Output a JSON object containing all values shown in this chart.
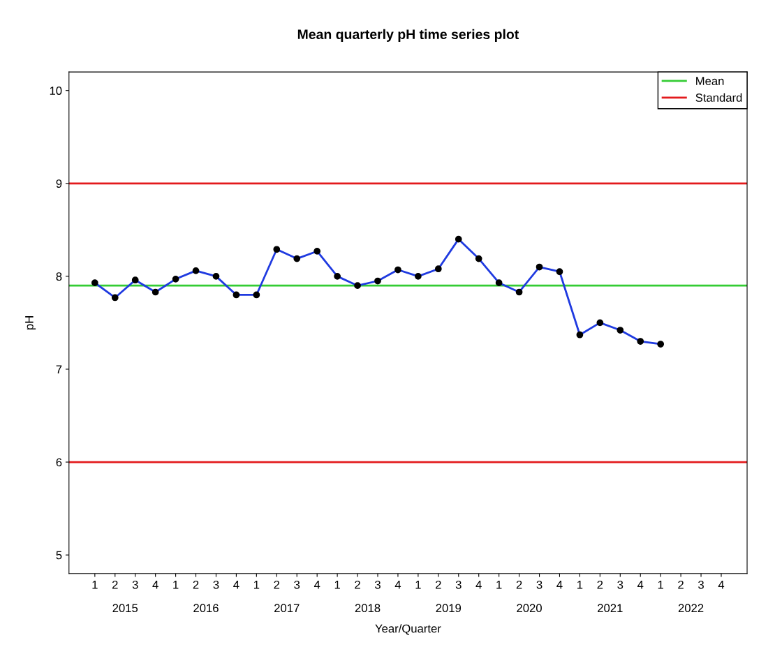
{
  "chart_data": {
    "type": "line",
    "title": "Mean quarterly pH time series plot",
    "xlabel": "Year/Quarter",
    "ylabel": "pH",
    "categories": [
      "1",
      "2",
      "3",
      "4",
      "1",
      "2",
      "3",
      "4",
      "1",
      "2",
      "3",
      "4",
      "1",
      "2",
      "3",
      "4",
      "1",
      "2",
      "3",
      "4",
      "1",
      "2",
      "3",
      "4",
      "1",
      "2",
      "3",
      "4",
      "1",
      "2",
      "3",
      "4"
    ],
    "annotations": [
      "2015",
      "2016",
      "2017",
      "2018",
      "2019",
      "2020",
      "2021",
      "2022"
    ],
    "series": [
      {
        "color": "#1f3ae0",
        "values": [
          7.93,
          7.77,
          7.96,
          7.83,
          7.97,
          8.06,
          8.0,
          7.8,
          7.8,
          8.29,
          8.19,
          8.27,
          8.0,
          7.9,
          7.95,
          8.07,
          8.0,
          8.08,
          8.4,
          8.19,
          7.93,
          7.83,
          8.1,
          8.05,
          7.37,
          7.5,
          7.42,
          7.3,
          7.27,
          null,
          null,
          null
        ]
      }
    ],
    "ylim": [
      4.8,
      10.2
    ],
    "yticks": [
      5,
      6,
      7,
      8,
      9,
      10
    ],
    "ref_lines": [
      {
        "axis": "y",
        "value": 7.9,
        "label": "Mean",
        "color": "#33cc33"
      },
      {
        "axis": "y",
        "value": 9,
        "label": "Standard",
        "color": "#e31a1c"
      },
      {
        "axis": "y",
        "value": 6,
        "label": null,
        "color": "#e31a1c"
      }
    ],
    "marker": "circle",
    "line_style": "solid",
    "grid": false,
    "legend": "top right"
  }
}
